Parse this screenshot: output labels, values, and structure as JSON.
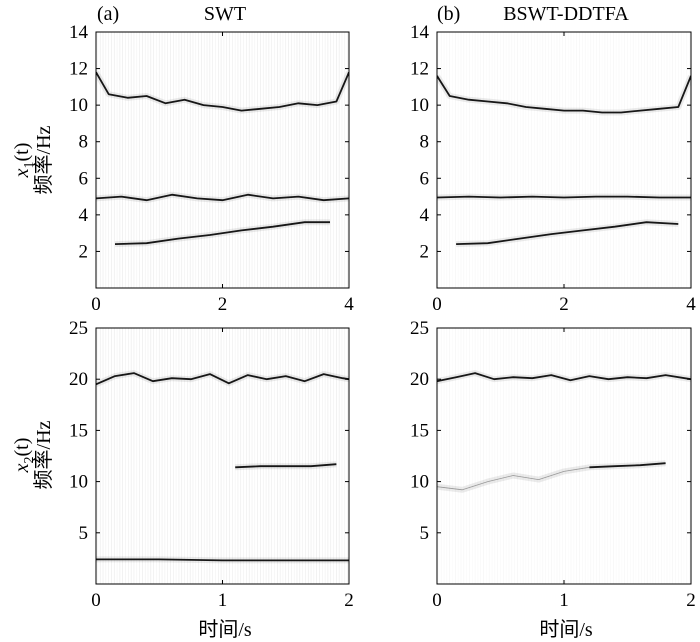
{
  "figure": {
    "panel_a_tag": "(a)",
    "panel_b_tag": "(b)",
    "col_a_title": "SWT",
    "col_b_title": "BSWT-DDTFA",
    "row1_signal_label": "x",
    "row1_signal_sub": "1",
    "row1_signal_arg": "(t)",
    "row2_signal_label": "x",
    "row2_signal_sub": "2",
    "row2_signal_arg": "(t)",
    "ylabel": "频率/Hz",
    "xlabel": "时间/s"
  },
  "chart_data": [
    {
      "type": "heatmap",
      "method": "SWT",
      "signal": "x1(t)",
      "xlim": [
        0,
        4
      ],
      "ylim": [
        0,
        14
      ],
      "xticks": [
        "0",
        "2",
        "4"
      ],
      "yticks": [
        "2",
        "4",
        "6",
        "8",
        "10",
        "12",
        "14"
      ],
      "xtick_values": [
        0,
        2,
        4
      ],
      "ytick_values": [
        2,
        4,
        6,
        8,
        10,
        12,
        14
      ],
      "ridges": [
        {
          "name": "component-high",
          "x": [
            0,
            0.2,
            0.5,
            0.8,
            1.1,
            1.4,
            1.7,
            2.0,
            2.3,
            2.6,
            2.9,
            3.2,
            3.5,
            3.8,
            4.0
          ],
          "y": [
            11.8,
            10.6,
            10.4,
            10.5,
            10.1,
            10.3,
            10.0,
            9.9,
            9.7,
            9.8,
            9.9,
            10.1,
            10.0,
            10.2,
            11.8
          ]
        },
        {
          "name": "component-mid",
          "x": [
            0,
            0.4,
            0.8,
            1.2,
            1.6,
            2.0,
            2.4,
            2.8,
            3.2,
            3.6,
            4.0
          ],
          "y": [
            4.9,
            5.0,
            4.8,
            5.1,
            4.9,
            4.8,
            5.1,
            4.9,
            5.0,
            4.8,
            4.9
          ]
        },
        {
          "name": "component-low",
          "x": [
            0.3,
            0.8,
            1.3,
            1.8,
            2.3,
            2.8,
            3.3,
            3.7
          ],
          "y": [
            2.4,
            2.45,
            2.7,
            2.9,
            3.15,
            3.35,
            3.6,
            3.6
          ]
        }
      ]
    },
    {
      "type": "heatmap",
      "method": "BSWT-DDTFA",
      "signal": "x1(t)",
      "xlim": [
        0,
        4
      ],
      "ylim": [
        0,
        14
      ],
      "xticks": [
        "0",
        "2",
        "4"
      ],
      "yticks": [
        "2",
        "4",
        "6",
        "8",
        "10",
        "12",
        "14"
      ],
      "xtick_values": [
        0,
        2,
        4
      ],
      "ytick_values": [
        2,
        4,
        6,
        8,
        10,
        12,
        14
      ],
      "ridges": [
        {
          "name": "component-high",
          "x": [
            0,
            0.2,
            0.5,
            0.8,
            1.1,
            1.4,
            1.7,
            2.0,
            2.3,
            2.6,
            2.9,
            3.2,
            3.5,
            3.8,
            4.0
          ],
          "y": [
            11.6,
            10.5,
            10.3,
            10.2,
            10.1,
            9.9,
            9.8,
            9.7,
            9.7,
            9.6,
            9.6,
            9.7,
            9.8,
            9.9,
            11.6
          ]
        },
        {
          "name": "component-mid",
          "x": [
            0,
            0.5,
            1.0,
            1.5,
            2.0,
            2.5,
            3.0,
            3.5,
            4.0
          ],
          "y": [
            4.95,
            5.0,
            4.95,
            5.0,
            4.95,
            5.0,
            5.0,
            4.95,
            4.95
          ]
        },
        {
          "name": "component-low",
          "x": [
            0.3,
            0.8,
            1.3,
            1.8,
            2.3,
            2.8,
            3.3,
            3.8
          ],
          "y": [
            2.4,
            2.45,
            2.7,
            2.95,
            3.15,
            3.35,
            3.6,
            3.5
          ]
        }
      ]
    },
    {
      "type": "heatmap",
      "method": "SWT",
      "signal": "x2(t)",
      "xlim": [
        0,
        2
      ],
      "ylim": [
        0,
        25
      ],
      "xticks": [
        "0",
        "1",
        "2"
      ],
      "yticks": [
        "5",
        "10",
        "15",
        "20",
        "25"
      ],
      "xtick_values": [
        0,
        1,
        2
      ],
      "ytick_values": [
        5,
        10,
        15,
        20,
        25
      ],
      "ridges": [
        {
          "name": "component-high",
          "x": [
            0,
            0.15,
            0.3,
            0.45,
            0.6,
            0.75,
            0.9,
            1.05,
            1.2,
            1.35,
            1.5,
            1.65,
            1.8,
            1.95,
            2.0
          ],
          "y": [
            19.5,
            20.3,
            20.6,
            19.8,
            20.1,
            20.0,
            20.5,
            19.6,
            20.4,
            20.0,
            20.3,
            19.8,
            20.5,
            20.1,
            20.0
          ]
        },
        {
          "name": "component-mid",
          "x": [
            1.1,
            1.3,
            1.5,
            1.7,
            1.9
          ],
          "y": [
            11.4,
            11.5,
            11.5,
            11.5,
            11.7
          ]
        },
        {
          "name": "component-low",
          "x": [
            0,
            0.5,
            1.0,
            1.5,
            2.0
          ],
          "y": [
            2.4,
            2.4,
            2.3,
            2.3,
            2.3
          ]
        }
      ]
    },
    {
      "type": "heatmap",
      "method": "BSWT-DDTFA",
      "signal": "x2(t)",
      "xlim": [
        0,
        2
      ],
      "ylim": [
        0,
        25
      ],
      "xticks": [
        "0",
        "1",
        "2"
      ],
      "yticks": [
        "5",
        "10",
        "15",
        "20",
        "25"
      ],
      "xtick_values": [
        0,
        1,
        2
      ],
      "ytick_values": [
        5,
        10,
        15,
        20,
        25
      ],
      "ridges": [
        {
          "name": "component-high",
          "x": [
            0,
            0.15,
            0.3,
            0.45,
            0.6,
            0.75,
            0.9,
            1.05,
            1.2,
            1.35,
            1.5,
            1.65,
            1.8,
            2.0
          ],
          "y": [
            19.8,
            20.2,
            20.6,
            20.0,
            20.2,
            20.1,
            20.4,
            19.9,
            20.3,
            20.0,
            20.2,
            20.1,
            20.4,
            20.0
          ]
        },
        {
          "name": "component-mid",
          "x": [
            1.2,
            1.4,
            1.6,
            1.8
          ],
          "y": [
            11.4,
            11.5,
            11.6,
            11.8
          ]
        },
        {
          "name": "component-faint",
          "x": [
            0,
            0.2,
            0.4,
            0.6,
            0.8,
            1.0,
            1.2
          ],
          "y": [
            9.5,
            9.2,
            10.0,
            10.6,
            10.2,
            11.0,
            11.4
          ]
        }
      ]
    }
  ]
}
